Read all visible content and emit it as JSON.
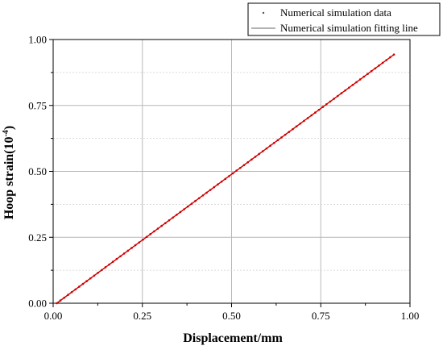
{
  "chart_data": {
    "type": "scatter",
    "xlabel": "Displacement/mm",
    "ylabel_main": "Hoop strain(10",
    "ylabel_exp": "-4",
    "ylabel_close": ")",
    "xlim": [
      0.0,
      1.0
    ],
    "ylim": [
      0.0,
      1.0
    ],
    "x_ticks": [
      "0.00",
      "0.25",
      "0.50",
      "0.75",
      "1.00"
    ],
    "y_ticks": [
      "0.00",
      "0.25",
      "0.50",
      "0.75",
      "1.00"
    ],
    "grid": true,
    "legend_position": "top-right",
    "series": [
      {
        "name": "Numerical simulation data",
        "kind": "points",
        "color": "#cc0000",
        "x_range": [
          0.01,
          0.955
        ],
        "y_range": [
          0.0,
          0.943
        ]
      },
      {
        "name": "Numerical simulation fitting line",
        "kind": "line",
        "color": "#cc0000",
        "x": [
          0.01,
          0.955
        ],
        "y": [
          0.0,
          0.943
        ]
      }
    ]
  }
}
